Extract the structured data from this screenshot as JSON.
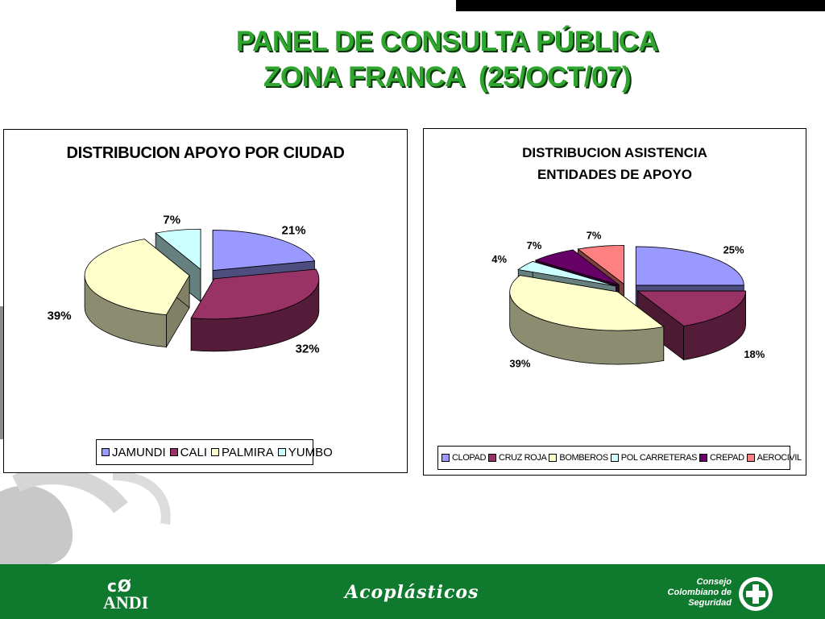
{
  "slide": {
    "title_line1": "PANEL DE CONSULTA PÚBLICA",
    "title_line2": "ZONA FRANCA  (25/OCT/07)"
  },
  "colors": {
    "title_green": "#2fa52f",
    "footer_green": "#0f7a2e",
    "jamundi": "#9999ff",
    "cali": "#993366",
    "palmira": "#ffffcc",
    "yumbo": "#ccffff",
    "crepad": "#660066",
    "aerocivil": "#ff8080"
  },
  "chart_data": [
    {
      "type": "pie",
      "title": "DISTRIBUCION APOYO POR CIUDAD",
      "categories": [
        "JAMUNDI",
        "CALI",
        "PALMIRA",
        "YUMBO"
      ],
      "values": [
        21,
        32,
        39,
        7
      ],
      "labels": [
        "21%",
        "32%",
        "39%",
        "7%"
      ],
      "unit": "%",
      "exploded": true,
      "style": "3d",
      "legend_position": "bottom"
    },
    {
      "type": "pie",
      "title": "DISTRIBUCION ASISTENCIA ENTIDADES DE APOYO",
      "title_lines": [
        "DISTRIBUCION ASISTENCIA",
        "ENTIDADES DE APOYO"
      ],
      "categories": [
        "CLOPAD",
        "CRUZ ROJA",
        "BOMBEROS",
        "POL CARRETERAS",
        "CREPAD",
        "AEROCIVIL"
      ],
      "values": [
        25,
        18,
        39,
        4,
        7,
        7
      ],
      "labels": [
        "25%",
        "18%",
        "39%",
        "4%",
        "7%",
        "7%"
      ],
      "unit": "%",
      "exploded": true,
      "style": "3d",
      "legend_position": "bottom"
    }
  ],
  "footer": {
    "andi_mark": "cØ",
    "andi_text": "ANDI",
    "acoplasticos": "Acoplásticos",
    "ccs_lines": [
      "Consejo",
      "Colombiano de",
      "Seguridad"
    ]
  }
}
